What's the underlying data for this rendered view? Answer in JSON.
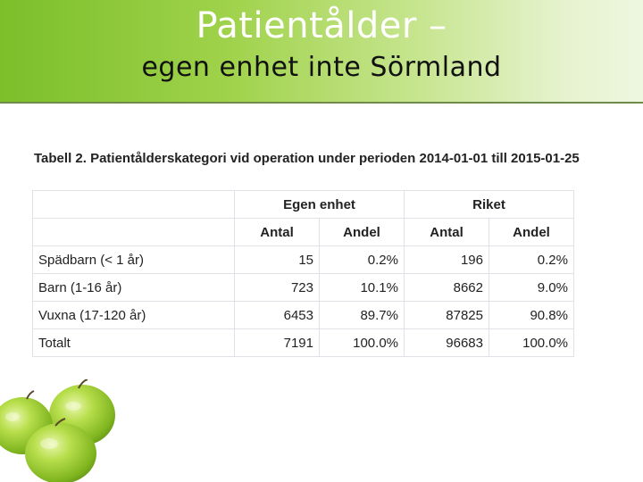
{
  "slide": {
    "title_line1": "Patientålder –",
    "title_line2": "egen enhet inte Sörmland"
  },
  "table": {
    "caption": "Tabell 2. Patientålderskategori vid operation under perioden 2014-01-01 till 2015-01-25",
    "group_headers": [
      "Egen enhet",
      "Riket"
    ],
    "sub_headers": [
      "Antal",
      "Andel",
      "Antal",
      "Andel"
    ],
    "rows": [
      {
        "label": "Spädbarn (< 1 år)",
        "cells": [
          "15",
          "0.2%",
          "196",
          "0.2%"
        ]
      },
      {
        "label": "Barn (1-16 år)",
        "cells": [
          "723",
          "10.1%",
          "8662",
          "9.0%"
        ]
      },
      {
        "label": "Vuxna (17-120 år)",
        "cells": [
          "6453",
          "89.7%",
          "87825",
          "90.8%"
        ]
      },
      {
        "label": "Totalt",
        "cells": [
          "7191",
          "100.0%",
          "96683",
          "100.0%"
        ]
      }
    ]
  }
}
